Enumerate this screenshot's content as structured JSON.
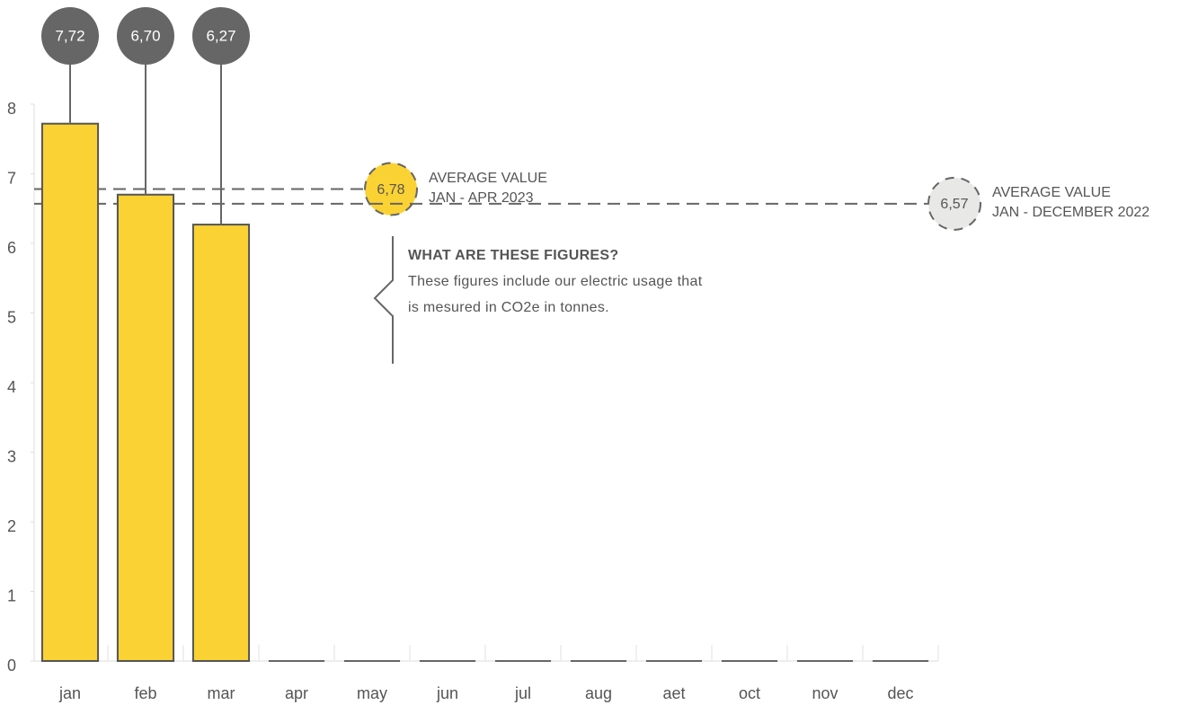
{
  "chart_data": {
    "type": "bar",
    "categories": [
      "jan",
      "feb",
      "mar",
      "apr",
      "may",
      "jun",
      "jul",
      "aug",
      "aet",
      "oct",
      "nov",
      "dec"
    ],
    "values": [
      7.72,
      6.7,
      6.27,
      null,
      null,
      null,
      null,
      null,
      null,
      null,
      null,
      null
    ],
    "value_labels": [
      "7,72",
      "6,70",
      "6,27",
      null,
      null,
      null,
      null,
      null,
      null,
      null,
      null,
      null
    ],
    "color": "#fbd233",
    "ylim": [
      0,
      8
    ],
    "yticks": [
      0,
      1,
      2,
      3,
      4,
      5,
      6,
      7,
      8
    ],
    "reference_lines": [
      {
        "value": 6.78,
        "value_label": "6,78",
        "label": [
          "AVERAGE VALUE",
          "JAN - APR 2023"
        ],
        "color": "#fbd233"
      },
      {
        "value": 6.57,
        "value_label": "6,57",
        "label": [
          "AVERAGE VALUE",
          "JAN - DECEMBER 2022"
        ],
        "color": "#e8e8e6"
      }
    ],
    "annotation": {
      "title": "WHAT ARE THESE FIGURES?",
      "text": "These figures include our electric usage that is mesured in CO2e in tonnes."
    }
  }
}
